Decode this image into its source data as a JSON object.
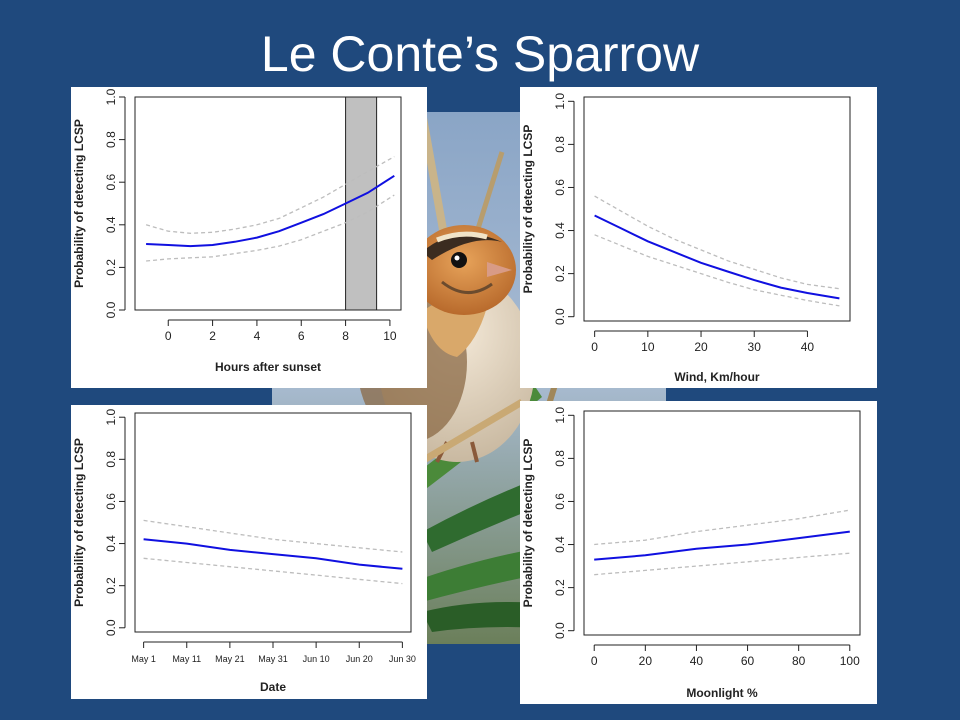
{
  "slide": {
    "title": "Le Conte’s Sparrow"
  },
  "photo": {
    "subject": "le-contes-sparrow-photo"
  },
  "colors": {
    "background": "#1f497d",
    "line": "#1010e0",
    "ci": "#bdbdbd",
    "band": "#c0c0c0"
  },
  "chart_data": [
    {
      "id": "hours",
      "type": "line",
      "xlabel": "Hours after sunset",
      "ylabel": "Probability of detecting LCSP",
      "xlim": [
        -1.5,
        10.5
      ],
      "ylim": [
        0,
        1
      ],
      "xticks": [
        0,
        2,
        4,
        6,
        8,
        10
      ],
      "xtick_labels": [
        "0",
        "2",
        "4",
        "6",
        "8",
        "10"
      ],
      "yticks": [
        0,
        0.2,
        0.4,
        0.6,
        0.8,
        1
      ],
      "ytick_labels": [
        "0.0",
        "0.2",
        "0.4",
        "0.6",
        "0.8",
        "1.0"
      ],
      "band": {
        "x0": 8,
        "x1": 9.4,
        "y0": 0,
        "y1": 1
      },
      "x": [
        -1,
        0,
        1,
        2,
        3,
        4,
        5,
        6,
        7,
        8,
        9,
        10.2
      ],
      "y": [
        0.31,
        0.305,
        0.3,
        0.305,
        0.32,
        0.34,
        0.37,
        0.41,
        0.45,
        0.5,
        0.55,
        0.63
      ],
      "lower": [
        0.23,
        0.24,
        0.245,
        0.25,
        0.265,
        0.28,
        0.3,
        0.33,
        0.37,
        0.41,
        0.46,
        0.54
      ],
      "upper": [
        0.4,
        0.37,
        0.36,
        0.365,
        0.38,
        0.4,
        0.43,
        0.48,
        0.53,
        0.59,
        0.65,
        0.72
      ]
    },
    {
      "id": "wind",
      "type": "line",
      "xlabel": "Wind, Km/hour",
      "ylabel": "Probability of detecting LCSP",
      "xlim": [
        -2,
        48
      ],
      "ylim": [
        -0.02,
        1.02
      ],
      "xticks": [
        0,
        10,
        20,
        30,
        40
      ],
      "xtick_labels": [
        "0",
        "10",
        "20",
        "30",
        "40"
      ],
      "yticks": [
        0,
        0.2,
        0.4,
        0.6,
        0.8,
        1
      ],
      "ytick_labels": [
        "0.0",
        "0.2",
        "0.4",
        "0.6",
        "0.8",
        "1.0"
      ],
      "x": [
        0,
        5,
        10,
        15,
        20,
        25,
        30,
        35,
        40,
        46
      ],
      "y": [
        0.47,
        0.41,
        0.35,
        0.3,
        0.25,
        0.21,
        0.17,
        0.135,
        0.11,
        0.085
      ],
      "lower": [
        0.38,
        0.33,
        0.28,
        0.24,
        0.2,
        0.16,
        0.125,
        0.1,
        0.075,
        0.05
      ],
      "upper": [
        0.56,
        0.49,
        0.42,
        0.36,
        0.31,
        0.26,
        0.22,
        0.18,
        0.15,
        0.13
      ]
    },
    {
      "id": "date",
      "type": "line",
      "xlabel": "Date",
      "ylabel": "Probability of detecting LCSP",
      "xlim": [
        -2,
        62
      ],
      "ylim": [
        -0.02,
        1.02
      ],
      "xticks": [
        0,
        10,
        20,
        30,
        40,
        50,
        60
      ],
      "xtick_labels": [
        "May 1",
        "May 11",
        "May 21",
        "May 31",
        "Jun 10",
        "Jun 20",
        "Jun 30"
      ],
      "yticks": [
        0,
        0.2,
        0.4,
        0.6,
        0.8,
        1
      ],
      "ytick_labels": [
        "0.0",
        "0.2",
        "0.4",
        "0.6",
        "0.8",
        "1.0"
      ],
      "x": [
        0,
        10,
        20,
        30,
        40,
        50,
        60
      ],
      "y": [
        0.42,
        0.4,
        0.37,
        0.35,
        0.33,
        0.3,
        0.28
      ],
      "lower": [
        0.33,
        0.31,
        0.29,
        0.27,
        0.25,
        0.23,
        0.21
      ],
      "upper": [
        0.51,
        0.48,
        0.45,
        0.42,
        0.4,
        0.38,
        0.36
      ]
    },
    {
      "id": "moon",
      "type": "line",
      "xlabel": "Moonlight %",
      "ylabel": "Probability of detecting LCSP",
      "xlim": [
        -4,
        104
      ],
      "ylim": [
        -0.02,
        1.02
      ],
      "xticks": [
        0,
        20,
        40,
        60,
        80,
        100
      ],
      "xtick_labels": [
        "0",
        "20",
        "40",
        "60",
        "80",
        "100"
      ],
      "yticks": [
        0,
        0.2,
        0.4,
        0.6,
        0.8,
        1
      ],
      "ytick_labels": [
        "0.0",
        "0.2",
        "0.4",
        "0.6",
        "0.8",
        "1.0"
      ],
      "x": [
        0,
        20,
        40,
        60,
        80,
        100
      ],
      "y": [
        0.33,
        0.35,
        0.38,
        0.4,
        0.43,
        0.46
      ],
      "lower": [
        0.26,
        0.28,
        0.3,
        0.32,
        0.34,
        0.36
      ],
      "upper": [
        0.4,
        0.42,
        0.46,
        0.49,
        0.52,
        0.56
      ]
    }
  ]
}
